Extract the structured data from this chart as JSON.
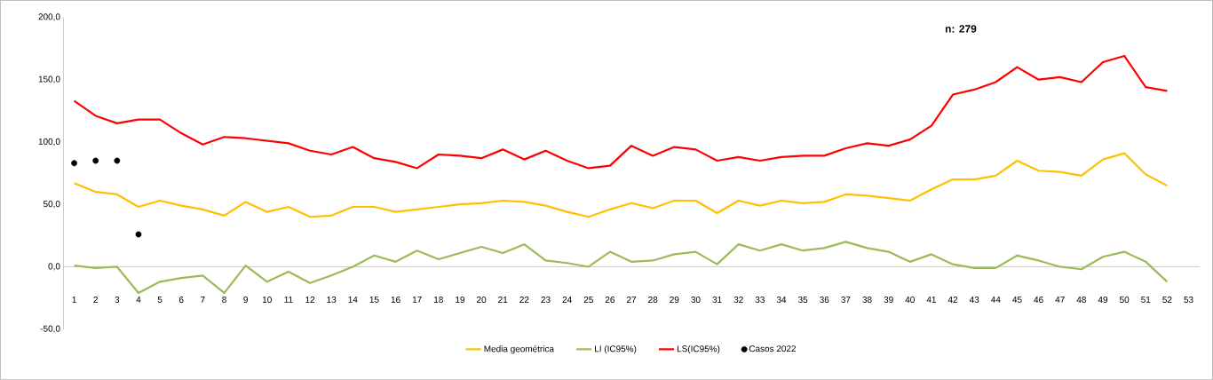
{
  "chart_data": {
    "type": "line",
    "categories": [
      "1",
      "2",
      "3",
      "4",
      "5",
      "6",
      "7",
      "8",
      "9",
      "10",
      "11",
      "12",
      "13",
      "14",
      "15",
      "16",
      "17",
      "18",
      "19",
      "20",
      "21",
      "22",
      "23",
      "24",
      "25",
      "26",
      "27",
      "28",
      "29",
      "30",
      "31",
      "32",
      "33",
      "34",
      "35",
      "36",
      "37",
      "38",
      "39",
      "40",
      "41",
      "42",
      "43",
      "44",
      "45",
      "46",
      "47",
      "48",
      "49",
      "50",
      "51",
      "52",
      "53"
    ],
    "series": [
      {
        "name": "Media geométrica",
        "color": "#ffc000",
        "values": [
          67,
          60,
          58,
          48,
          53,
          49,
          46,
          41,
          52,
          44,
          48,
          40,
          41,
          48,
          48,
          44,
          46,
          48,
          50,
          51,
          53,
          52,
          49,
          44,
          40,
          46,
          51,
          47,
          53,
          53,
          43,
          53,
          49,
          53,
          51,
          52,
          58,
          57,
          55,
          53,
          62,
          70,
          70,
          73,
          85,
          77,
          76,
          73,
          86,
          91,
          74,
          65,
          null
        ]
      },
      {
        "name": "LI (IC95%)",
        "color": "#9bbb59",
        "values": [
          1,
          -1,
          0,
          -21,
          -12,
          -9,
          -7,
          -21,
          1,
          -12,
          -4,
          -13,
          -7,
          0,
          9,
          4,
          13,
          6,
          11,
          16,
          11,
          18,
          5,
          3,
          0,
          12,
          4,
          5,
          10,
          12,
          2,
          18,
          13,
          18,
          13,
          15,
          20,
          15,
          12,
          4,
          10,
          2,
          -1,
          -1,
          9,
          5,
          0,
          -2,
          8,
          12,
          4,
          -12,
          null
        ]
      },
      {
        "name": "LS(IC95%)",
        "color": "#ff0000",
        "values": [
          133,
          121,
          115,
          118,
          118,
          107,
          98,
          104,
          103,
          101,
          99,
          93,
          90,
          96,
          87,
          84,
          79,
          90,
          89,
          87,
          94,
          86,
          93,
          85,
          79,
          81,
          97,
          89,
          96,
          94,
          85,
          88,
          85,
          88,
          89,
          89,
          95,
          99,
          97,
          102,
          113,
          138,
          142,
          148,
          160,
          150,
          152,
          148,
          164,
          169,
          144,
          141,
          null
        ]
      },
      {
        "name": "Casos 2022",
        "color": "#000000",
        "type": "scatter",
        "values": [
          83,
          85,
          85,
          26,
          null,
          null,
          null,
          null,
          null,
          null,
          null,
          null,
          null,
          null,
          null,
          null,
          null,
          null,
          null,
          null,
          null,
          null,
          null,
          null,
          null,
          null,
          null,
          null,
          null,
          null,
          null,
          null,
          null,
          null,
          null,
          null,
          null,
          null,
          null,
          null,
          null,
          null,
          null,
          null,
          null,
          null,
          null,
          null,
          null,
          null,
          null,
          null,
          null
        ]
      }
    ],
    "ylim": [
      -50,
      200
    ],
    "yticks": [
      {
        "value": -50,
        "label": "-50,0"
      },
      {
        "value": 0,
        "label": "0,0"
      },
      {
        "value": 50,
        "label": "50,0"
      },
      {
        "value": 100,
        "label": "100,0"
      },
      {
        "value": 150,
        "label": "150,0"
      },
      {
        "value": 200,
        "label": "200,0"
      }
    ],
    "annotations": [
      "**n:  279**"
    ],
    "legend": "bottom"
  }
}
